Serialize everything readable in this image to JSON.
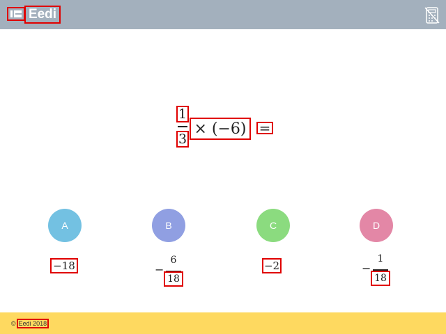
{
  "header": {
    "logo_text": "Eedi",
    "logo_icon": "eedi-logo-mark-icon",
    "calculator_icon": "calculator-disabled-icon",
    "bg_color": "#a3b0bd"
  },
  "question": {
    "fraction_numerator": "1",
    "fraction_denominator": "3",
    "operation": "× (−6)",
    "equals": "="
  },
  "choices": [
    {
      "letter": "A",
      "color": "#73c1e2",
      "answer": "−18"
    },
    {
      "letter": "B",
      "color": "#909fe2",
      "answer_sign": "−",
      "answer_numerator": "6",
      "answer_denominator": "18"
    },
    {
      "letter": "C",
      "color": "#8bdb7f",
      "answer": "−2"
    },
    {
      "letter": "D",
      "color": "#e387a6",
      "answer_sign": "−",
      "answer_numerator": "1",
      "answer_denominator": "18"
    }
  ],
  "footer": {
    "copyright_symbol": "©",
    "copyright_text": "Eedi 2018",
    "bg_color": "#fed960"
  }
}
